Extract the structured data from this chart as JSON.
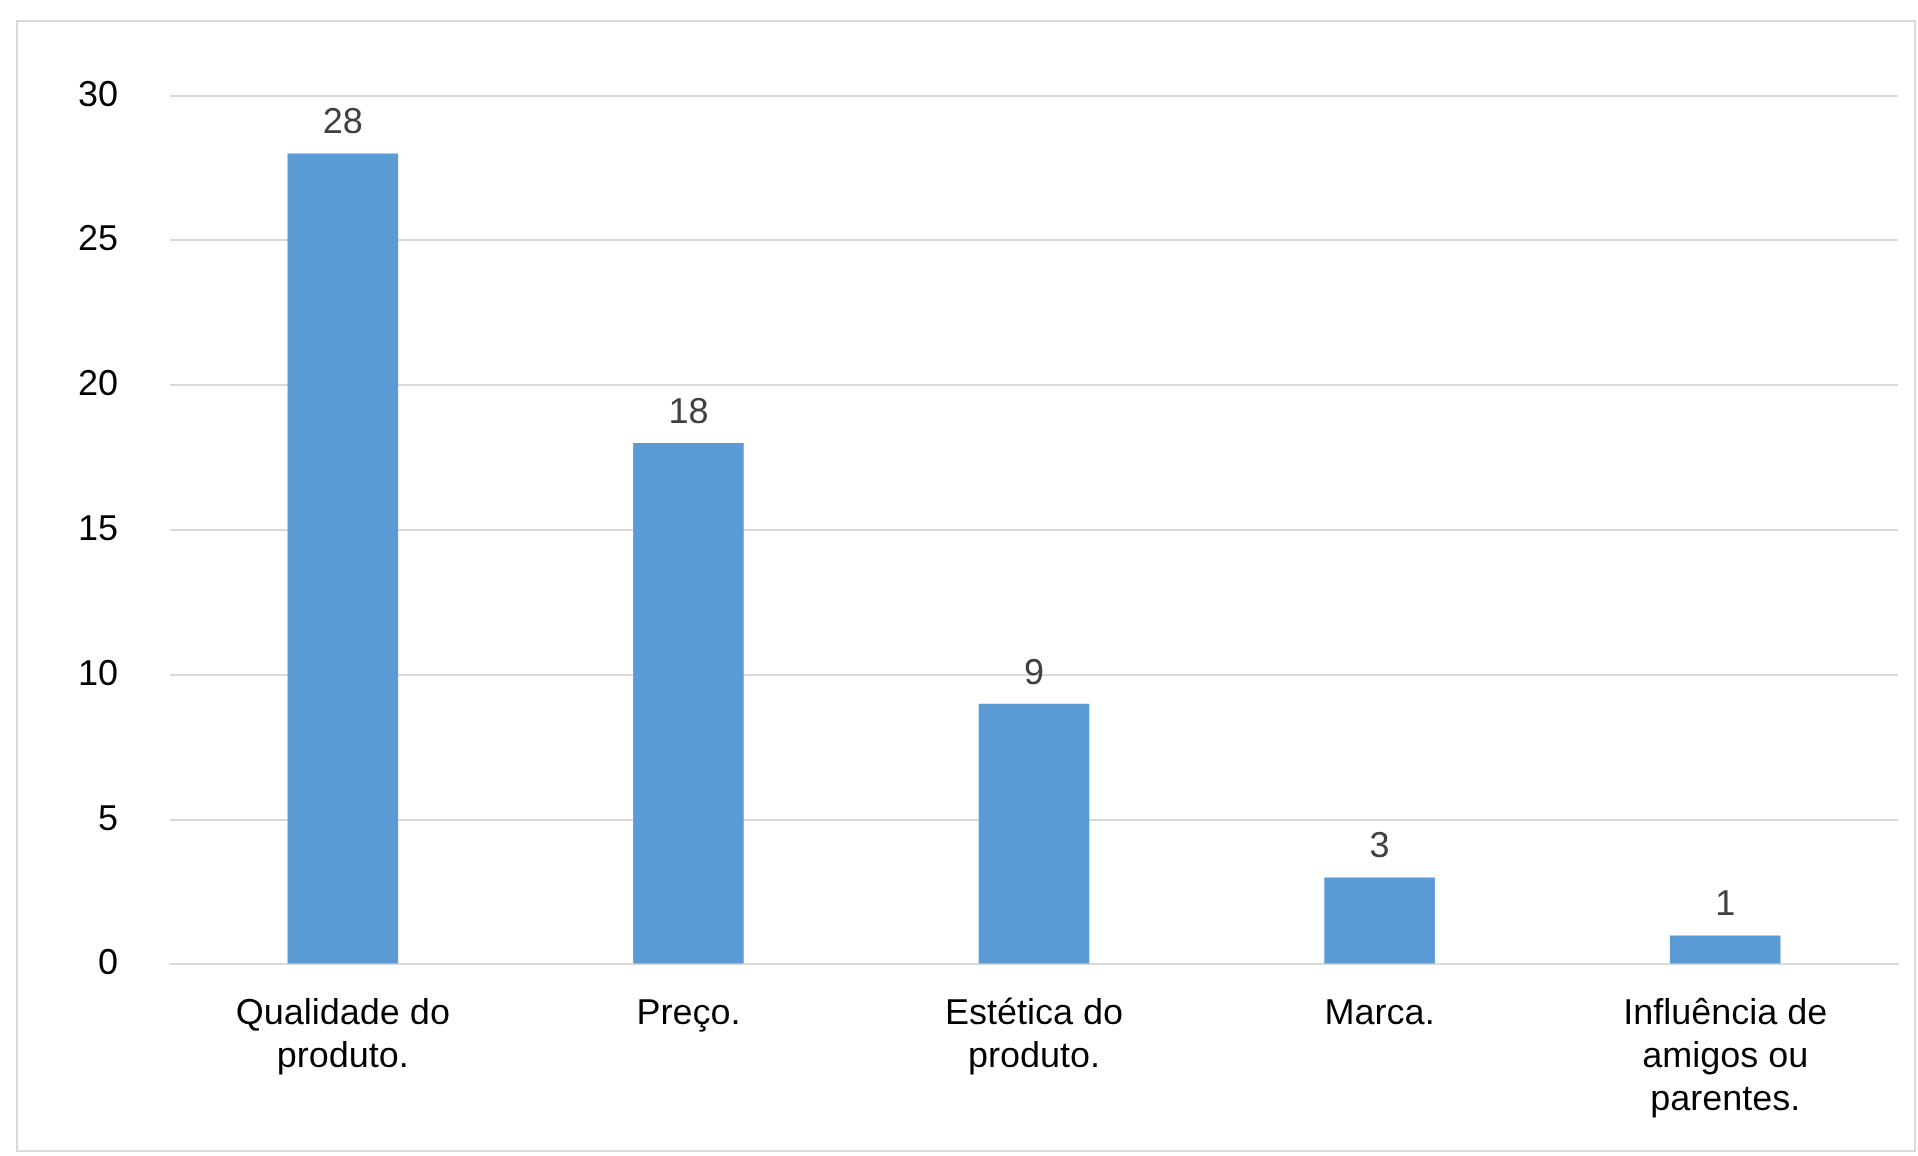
{
  "chart_data": {
    "type": "bar",
    "categories": [
      "Qualidade do produto.",
      "Preço.",
      "Estética do produto.",
      "Marca.",
      "Influência de amigos ou parentes."
    ],
    "values": [
      28,
      18,
      9,
      3,
      1
    ],
    "color": "#5b9bd5",
    "ylim": [
      0,
      30
    ],
    "yticks": [
      0,
      5,
      10,
      15,
      20,
      25,
      30
    ],
    "grid": "y",
    "legend": false,
    "data_labels": true
  }
}
